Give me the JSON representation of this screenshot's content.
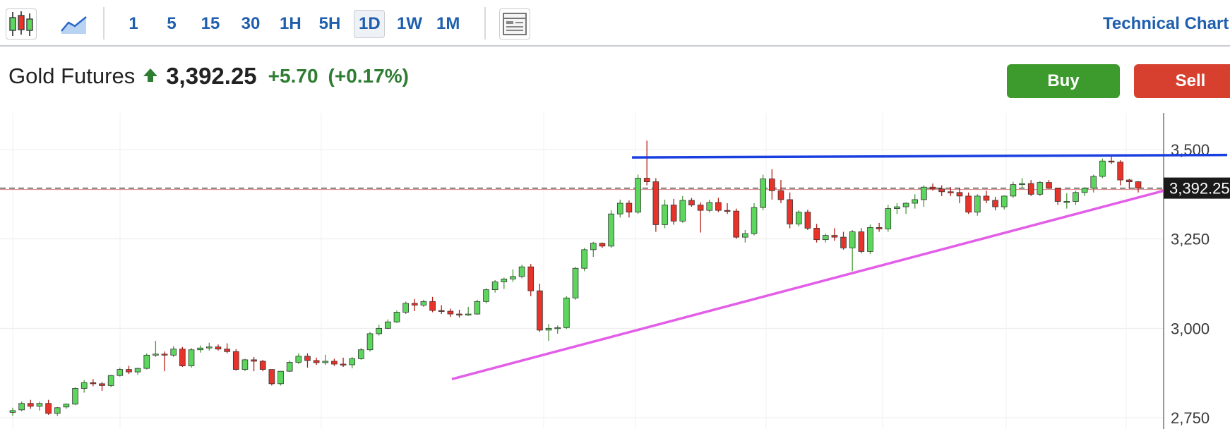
{
  "toolbar": {
    "chart_type_icons": [
      "candlestick-icon",
      "area-chart-icon"
    ],
    "timeframes": [
      "1",
      "5",
      "15",
      "30",
      "1H",
      "5H",
      "1D",
      "1W",
      "1M"
    ],
    "active_timeframe": "1D",
    "layout_icon": "layout-icon",
    "technical_link": "Technical Chart"
  },
  "quote": {
    "instrument": "Gold Futures",
    "direction_icon": "up-arrow-icon",
    "price": "3,392.25",
    "change": "+5.70",
    "change_percent": "(+0.17%)"
  },
  "actions": {
    "buy": "Buy",
    "sell": "Sell"
  },
  "colors": {
    "up": "#5cd65c",
    "down": "#e8332a",
    "resistance": "#1a3fe0",
    "support": "#e35ee8",
    "accent": "#1f5fae",
    "buy": "#3d9a2c",
    "sell": "#d7402f"
  },
  "chart_data": {
    "type": "candlestick",
    "y_ticks": [
      "3,500",
      "3,250",
      "3,000",
      "2,750"
    ],
    "y_tick_values": [
      3500,
      3250,
      3000,
      2750
    ],
    "ylim": [
      2730,
      3600
    ],
    "current_price_label": "3,392.25",
    "current_price": 3392.25,
    "candles": [
      [
        2765,
        2778,
        2755,
        2770
      ],
      [
        2772,
        2795,
        2768,
        2790
      ],
      [
        2790,
        2800,
        2775,
        2782
      ],
      [
        2782,
        2795,
        2770,
        2790
      ],
      [
        2790,
        2800,
        2758,
        2762
      ],
      [
        2762,
        2780,
        2755,
        2778
      ],
      [
        2780,
        2790,
        2775,
        2788
      ],
      [
        2788,
        2835,
        2785,
        2832
      ],
      [
        2832,
        2855,
        2820,
        2848
      ],
      [
        2848,
        2858,
        2838,
        2845
      ],
      [
        2845,
        2850,
        2825,
        2840
      ],
      [
        2840,
        2870,
        2835,
        2868
      ],
      [
        2868,
        2890,
        2865,
        2885
      ],
      [
        2885,
        2895,
        2872,
        2878
      ],
      [
        2878,
        2890,
        2870,
        2888
      ],
      [
        2888,
        2930,
        2885,
        2925
      ],
      [
        2925,
        2965,
        2920,
        2928
      ],
      [
        2928,
        2935,
        2880,
        2925
      ],
      [
        2925,
        2950,
        2920,
        2942
      ],
      [
        2942,
        2948,
        2892,
        2895
      ],
      [
        2895,
        2945,
        2890,
        2940
      ],
      [
        2940,
        2952,
        2932,
        2945
      ],
      [
        2945,
        2960,
        2938,
        2948
      ],
      [
        2948,
        2955,
        2938,
        2942
      ],
      [
        2942,
        2958,
        2930,
        2935
      ],
      [
        2935,
        2942,
        2882,
        2885
      ],
      [
        2885,
        2915,
        2880,
        2912
      ],
      [
        2912,
        2920,
        2880,
        2908
      ],
      [
        2908,
        2912,
        2880,
        2885
      ],
      [
        2885,
        2885,
        2840,
        2845
      ],
      [
        2845,
        2880,
        2840,
        2880
      ],
      [
        2880,
        2910,
        2878,
        2905
      ],
      [
        2905,
        2930,
        2900,
        2922
      ],
      [
        2922,
        2930,
        2890,
        2910
      ],
      [
        2910,
        2918,
        2898,
        2904
      ],
      [
        2904,
        2926,
        2898,
        2908
      ],
      [
        2908,
        2915,
        2895,
        2900
      ],
      [
        2900,
        2918,
        2892,
        2898
      ],
      [
        2898,
        2920,
        2888,
        2915
      ],
      [
        2915,
        2945,
        2912,
        2940
      ],
      [
        2940,
        2990,
        2935,
        2985
      ],
      [
        2985,
        3010,
        2980,
        3000
      ],
      [
        3000,
        3025,
        2998,
        3018
      ],
      [
        3018,
        3050,
        3015,
        3045
      ],
      [
        3045,
        3075,
        3040,
        3070
      ],
      [
        3070,
        3082,
        3048,
        3065
      ],
      [
        3065,
        3080,
        3060,
        3075
      ],
      [
        3075,
        3088,
        3045,
        3050
      ],
      [
        3050,
        3065,
        3040,
        3048
      ],
      [
        3048,
        3055,
        3032,
        3040
      ],
      [
        3040,
        3052,
        3030,
        3038
      ],
      [
        3038,
        3060,
        3035,
        3040
      ],
      [
        3040,
        3080,
        3038,
        3075
      ],
      [
        3075,
        3112,
        3070,
        3108
      ],
      [
        3108,
        3135,
        3100,
        3130
      ],
      [
        3130,
        3142,
        3110,
        3138
      ],
      [
        3138,
        3165,
        3130,
        3145
      ],
      [
        3145,
        3178,
        3140,
        3172
      ],
      [
        3172,
        3180,
        3090,
        3105
      ],
      [
        3105,
        3125,
        2990,
        2995
      ],
      [
        2995,
        3012,
        2965,
        3000
      ],
      [
        3000,
        3008,
        2985,
        3002
      ],
      [
        3002,
        3090,
        2998,
        3085
      ],
      [
        3085,
        3172,
        3080,
        3168
      ],
      [
        3168,
        3225,
        3160,
        3220
      ],
      [
        3220,
        3242,
        3200,
        3238
      ],
      [
        3238,
        3240,
        3225,
        3230
      ],
      [
        3230,
        3330,
        3225,
        3320
      ],
      [
        3320,
        3360,
        3310,
        3350
      ],
      [
        3350,
        3358,
        3310,
        3325
      ],
      [
        3325,
        3430,
        3320,
        3420
      ],
      [
        3420,
        3525,
        3400,
        3410
      ],
      [
        3410,
        3420,
        3270,
        3290
      ],
      [
        3290,
        3360,
        3280,
        3345
      ],
      [
        3345,
        3362,
        3290,
        3300
      ],
      [
        3300,
        3370,
        3295,
        3358
      ],
      [
        3358,
        3365,
        3340,
        3345
      ],
      [
        3345,
        3352,
        3268,
        3330
      ],
      [
        3330,
        3360,
        3325,
        3352
      ],
      [
        3352,
        3365,
        3325,
        3330
      ],
      [
        3330,
        3350,
        3320,
        3328
      ],
      [
        3328,
        3335,
        3250,
        3255
      ],
      [
        3255,
        3275,
        3240,
        3265
      ],
      [
        3265,
        3350,
        3260,
        3338
      ],
      [
        3338,
        3430,
        3330,
        3418
      ],
      [
        3418,
        3445,
        3360,
        3385
      ],
      [
        3385,
        3415,
        3350,
        3360
      ],
      [
        3360,
        3380,
        3280,
        3292
      ],
      [
        3292,
        3330,
        3285,
        3325
      ],
      [
        3325,
        3332,
        3275,
        3280
      ],
      [
        3280,
        3292,
        3240,
        3248
      ],
      [
        3248,
        3265,
        3240,
        3260
      ],
      [
        3260,
        3280,
        3245,
        3255
      ],
      [
        3255,
        3270,
        3220,
        3225
      ],
      [
        3225,
        3275,
        3160,
        3270
      ],
      [
        3270,
        3280,
        3210,
        3215
      ],
      [
        3215,
        3290,
        3208,
        3282
      ],
      [
        3282,
        3295,
        3270,
        3278
      ],
      [
        3278,
        3345,
        3270,
        3335
      ],
      [
        3335,
        3350,
        3320,
        3340
      ],
      [
        3340,
        3352,
        3320,
        3350
      ],
      [
        3350,
        3375,
        3335,
        3360
      ],
      [
        3360,
        3400,
        3340,
        3395
      ],
      [
        3395,
        3405,
        3385,
        3390
      ],
      [
        3390,
        3400,
        3370,
        3382
      ],
      [
        3382,
        3395,
        3370,
        3380
      ],
      [
        3380,
        3392,
        3350,
        3370
      ],
      [
        3370,
        3380,
        3320,
        3325
      ],
      [
        3325,
        3375,
        3315,
        3370
      ],
      [
        3370,
        3385,
        3350,
        3358
      ],
      [
        3358,
        3368,
        3330,
        3340
      ],
      [
        3340,
        3372,
        3332,
        3370
      ],
      [
        3370,
        3410,
        3365,
        3402
      ],
      [
        3402,
        3420,
        3390,
        3405
      ],
      [
        3405,
        3415,
        3370,
        3375
      ],
      [
        3375,
        3412,
        3370,
        3408
      ],
      [
        3408,
        3415,
        3390,
        3392
      ],
      [
        3392,
        3392,
        3345,
        3355
      ],
      [
        3355,
        3378,
        3335,
        3355
      ],
      [
        3355,
        3385,
        3345,
        3380
      ],
      [
        3380,
        3395,
        3370,
        3392
      ],
      [
        3392,
        3430,
        3380,
        3425
      ],
      [
        3425,
        3475,
        3420,
        3468
      ],
      [
        3468,
        3480,
        3460,
        3465
      ],
      [
        3465,
        3470,
        3400,
        3415
      ],
      [
        3415,
        3418,
        3390,
        3410
      ],
      [
        3410,
        3412,
        3380,
        3392
      ]
    ],
    "resistance_line": [
      3478,
      3485
    ],
    "support_line": [
      2858,
      3392
    ]
  }
}
